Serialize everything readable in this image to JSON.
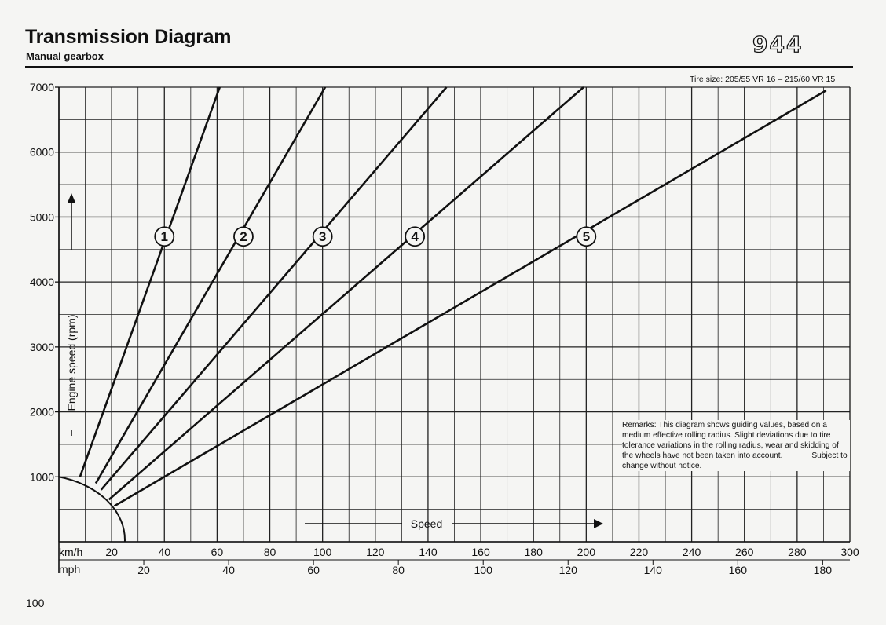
{
  "header": {
    "title": "Transmission Diagram",
    "subtitle": "Manual gearbox",
    "logo": "944"
  },
  "tire_note": "Tire size: 205/55 VR 16 – 215/60 VR 15",
  "remarks": {
    "text": "Remarks: This diagram shows guiding values, based on a medium effective rolling radius. Slight deviations due to tire tolerance variations in the rolling radius, wear and skidding of the wheels have not been taken into account.",
    "notice": "Subject to change without notice."
  },
  "page_number": "100",
  "chart_data": {
    "type": "line",
    "ylabel": "Engine speed (rpm)",
    "xlabel": "Speed",
    "x_unit_primary": "km/h",
    "x_unit_secondary": "mph",
    "xlim": [
      0,
      300
    ],
    "ylim": [
      0,
      7000
    ],
    "yticks": [
      1000,
      2000,
      3000,
      4000,
      5000,
      6000,
      7000
    ],
    "xticks_kmh": [
      20,
      40,
      60,
      80,
      100,
      120,
      140,
      160,
      180,
      200,
      220,
      240,
      260,
      280,
      300
    ],
    "xticks_mph": [
      20,
      40,
      60,
      80,
      100,
      120,
      140,
      160,
      180
    ],
    "grid": true,
    "series": [
      {
        "name": "1",
        "x": [
          8,
          61
        ],
        "y": [
          1000,
          7000
        ]
      },
      {
        "name": "2",
        "x": [
          14,
          101
        ],
        "y": [
          900,
          7000
        ]
      },
      {
        "name": "3",
        "x": [
          16,
          147
        ],
        "y": [
          800,
          7000
        ]
      },
      {
        "name": "4",
        "x": [
          19,
          199
        ],
        "y": [
          650,
          7000
        ]
      },
      {
        "name": "5",
        "x": [
          21,
          291
        ],
        "y": [
          550,
          6950
        ]
      }
    ],
    "gear_label_positions": [
      {
        "name": "1",
        "x": 40,
        "y": 4700
      },
      {
        "name": "2",
        "x": 70,
        "y": 4700
      },
      {
        "name": "3",
        "x": 100,
        "y": 4700
      },
      {
        "name": "4",
        "x": 135,
        "y": 4700
      },
      {
        "name": "5",
        "x": 200,
        "y": 4700
      }
    ]
  }
}
